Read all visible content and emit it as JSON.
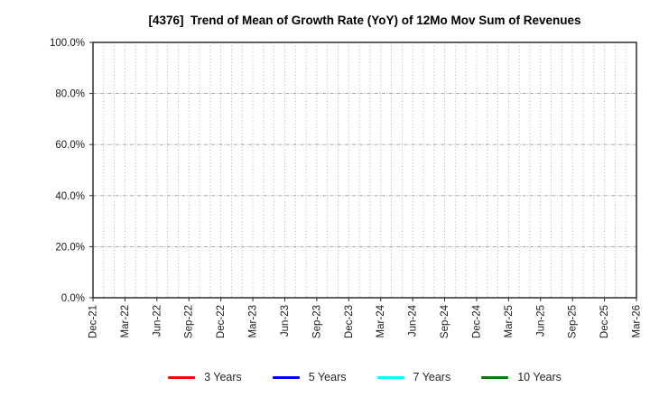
{
  "figure": {
    "title": "[4376]  Trend of Mean of Growth Rate (YoY) of 12Mo Mov Sum of Revenues"
  },
  "chart_data": {
    "type": "line",
    "title": "[4376]  Trend of Mean of Growth Rate (YoY) of 12Mo Mov Sum of Revenues",
    "x_tick_labels": [
      "Dec-21",
      "Mar-22",
      "Jun-22",
      "Sep-22",
      "Dec-22",
      "Mar-23",
      "Jun-23",
      "Sep-23",
      "Dec-23",
      "Mar-24",
      "Jun-24",
      "Sep-24",
      "Dec-24",
      "Mar-25",
      "Jun-25",
      "Sep-25",
      "Dec-25",
      "Mar-26"
    ],
    "x_minor_gridlines": "monthly",
    "months_per_major_tick": 3,
    "y_ticks": [
      0,
      20,
      40,
      60,
      80,
      100
    ],
    "y_tick_labels": [
      "0.0%",
      "20.0%",
      "40.0%",
      "60.0%",
      "80.0%",
      "100.0%"
    ],
    "ylim": [
      0,
      100
    ],
    "grid": true,
    "legend_position": "bottom",
    "series": [
      {
        "name": "3 Years",
        "color": "#ff0000",
        "values": []
      },
      {
        "name": "5 Years",
        "color": "#0000ff",
        "values": []
      },
      {
        "name": "7 Years",
        "color": "#00ffff",
        "values": []
      },
      {
        "name": "10 Years",
        "color": "#008000",
        "values": []
      }
    ],
    "plot_is_empty": true
  },
  "colors": {
    "axis_border": "#2b2b2b",
    "grid_horizontal": "#9a9a9a",
    "grid_vertical": "#a8a8a8",
    "tick_text": "#1a1a1a"
  }
}
